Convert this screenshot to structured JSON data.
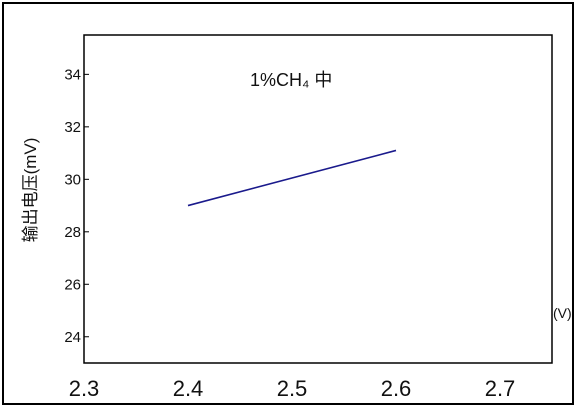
{
  "chart_data": {
    "type": "line",
    "title": "",
    "annotation": "1%CH₄ 中",
    "ylabel": "输出电压(mV)",
    "xunit": "(V)",
    "xlim": [
      2.3,
      2.75
    ],
    "ylim": [
      23,
      35.5
    ],
    "xticks": [
      "2.3",
      "2.4",
      "2.5",
      "2.6",
      "2.7"
    ],
    "yticks": [
      "24",
      "26",
      "28",
      "30",
      "32",
      "34"
    ],
    "grid": false,
    "series": [
      {
        "x": [
          2.4,
          2.6
        ],
        "y": [
          29.0,
          31.1
        ],
        "color": "#1a1a8c"
      }
    ]
  }
}
